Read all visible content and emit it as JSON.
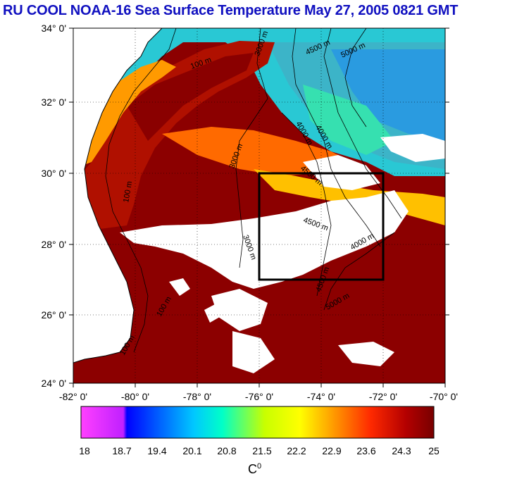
{
  "title": "RU COOL  NOAA-16 Sea Surface Temperature May 27, 2005 0821 GMT",
  "map": {
    "lat_labels": [
      "34° 0'",
      "32° 0'",
      "30° 0'",
      "28° 0'",
      "26° 0'",
      "24° 0'"
    ],
    "lon_labels": [
      "-82° 0'",
      "-80° 0'",
      "-78° 0'",
      "-76° 0'",
      "-74° 0'",
      "-72° 0'",
      "-70° 0'"
    ],
    "lat_range": [
      24,
      34
    ],
    "lon_range": [
      -82,
      -70
    ],
    "study_box": {
      "lon": [
        -76,
        -72
      ],
      "lat": [
        27,
        30
      ]
    },
    "contour_labels": [
      "100 m",
      "3000 m",
      "4500 m",
      "5000 m",
      "4000 m",
      "3000 m",
      "4000 m",
      "4500 m",
      "4500 m",
      "100 m",
      "3000 m",
      "4000 m",
      "4500 m",
      "5000 m",
      "100 m",
      "100 m"
    ],
    "colors": {
      "land": "#ffffff",
      "cloud": "#ffffff",
      "box": "#000000"
    }
  },
  "colorbar": {
    "ticks": [
      "18",
      "18.7",
      "19.4",
      "20.1",
      "20.8",
      "21.5",
      "22.2",
      "22.9",
      "23.6",
      "24.3",
      "25"
    ],
    "unit_base": "C",
    "unit_sup": "0",
    "range": [
      18,
      25
    ],
    "colors": [
      "#ff40ff",
      "#0000ff",
      "#00c8ff",
      "#00ffc8",
      "#c8ff00",
      "#ffff00",
      "#ff9600",
      "#ff2a00",
      "#b40000",
      "#780000"
    ]
  }
}
